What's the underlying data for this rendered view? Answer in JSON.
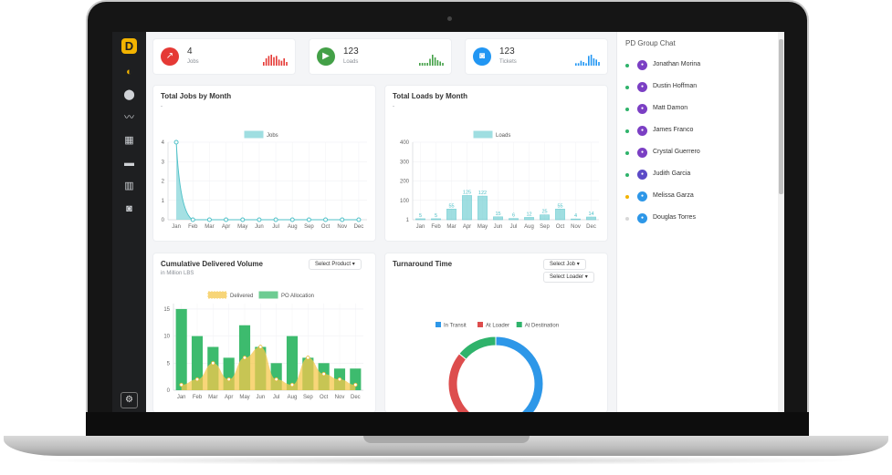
{
  "logo_letter": "D",
  "nav": [
    {
      "icon": "dashboard-icon",
      "glyph": "◐",
      "active": true
    },
    {
      "icon": "location-pin-icon",
      "glyph": "⬤",
      "active": false
    },
    {
      "icon": "trend-line-icon",
      "glyph": "〰",
      "active": false
    },
    {
      "icon": "grid-icon",
      "glyph": "▦",
      "active": false
    },
    {
      "icon": "truck-icon",
      "glyph": "▬",
      "active": false
    },
    {
      "icon": "building-icon",
      "glyph": "▥",
      "active": false
    },
    {
      "icon": "camera-icon",
      "glyph": "◙",
      "active": false
    }
  ],
  "stats": [
    {
      "value": "4",
      "label": "Jobs",
      "color": "#e53935",
      "icon": "trend-icon",
      "glyph": "↗",
      "spark": [
        3,
        6,
        8,
        9,
        7,
        8,
        5,
        4,
        6,
        3
      ]
    },
    {
      "value": "123",
      "label": "Loads",
      "color": "#43a047",
      "icon": "truck-icon",
      "glyph": "▶",
      "spark": [
        2,
        2,
        2,
        2,
        5,
        8,
        6,
        4,
        3,
        2
      ]
    },
    {
      "value": "123",
      "label": "Tickets",
      "color": "#2196f3",
      "icon": "camera-icon",
      "glyph": "◙",
      "spark": [
        2,
        2,
        4,
        3,
        2,
        8,
        9,
        6,
        5,
        3
      ]
    }
  ],
  "jobs_card": {
    "title": "Total Jobs by Month",
    "subtitle": "-"
  },
  "loads_card": {
    "title": "Total Loads by Month",
    "subtitle": "-"
  },
  "volume_card": {
    "title": "Cumulative Delivered Volume",
    "subtitle": "in Million LBS",
    "select_label": "Select Product"
  },
  "turnaround_card": {
    "title": "Turnaround Time",
    "select_job": "Select Job",
    "select_loader": "Select Loader"
  },
  "chart_data": [
    {
      "type": "area",
      "legend": [
        "Jobs"
      ],
      "categories": [
        "Jan",
        "Feb",
        "Mar",
        "Apr",
        "May",
        "Jun",
        "Jul",
        "Aug",
        "Sep",
        "Oct",
        "Nov",
        "Dec"
      ],
      "series": [
        {
          "name": "Jobs",
          "values": [
            4,
            0,
            0,
            0,
            0,
            0,
            0,
            0,
            0,
            0,
            0,
            0
          ]
        }
      ],
      "yticks": [
        0,
        1,
        2,
        3,
        4
      ],
      "ylim": [
        0,
        4
      ],
      "color": "#7fd3d7"
    },
    {
      "type": "bar",
      "legend": [
        "Loads"
      ],
      "categories": [
        "Jan",
        "Feb",
        "Mar",
        "Apr",
        "May",
        "Jun",
        "Jul",
        "Aug",
        "Sep",
        "Oct",
        "Nov",
        "Dec"
      ],
      "series": [
        {
          "name": "Loads",
          "values": [
            5,
            5,
            55,
            125,
            122,
            15,
            6,
            12,
            25,
            55,
            4,
            14
          ]
        }
      ],
      "yticks": [
        1,
        100,
        200,
        300,
        400
      ],
      "ylim": [
        0,
        400
      ],
      "color": "#7fd3d7"
    },
    {
      "type": "bar",
      "legend": [
        "Delivered",
        "PO Allocation"
      ],
      "categories": [
        "Jan",
        "Feb",
        "Mar",
        "Apr",
        "May",
        "Jun",
        "Jul",
        "Aug",
        "Sep",
        "Oct",
        "Nov",
        "Dec"
      ],
      "series": [
        {
          "name": "PO Allocation",
          "values": [
            15,
            10,
            8,
            6,
            12,
            8,
            5,
            10,
            6,
            5,
            4,
            4
          ]
        },
        {
          "name": "Delivered",
          "values": [
            1,
            2,
            5,
            2,
            6,
            8,
            2,
            1,
            6,
            3,
            2,
            1
          ]
        }
      ],
      "yticks": [
        0,
        5,
        10,
        15
      ],
      "ylim": [
        0,
        16
      ],
      "colors": {
        "PO Allocation": "#3dbb6e",
        "Delivered": "#f5c84c"
      }
    },
    {
      "type": "pie",
      "legend": [
        "In Transit",
        "At Loader",
        "At Destination"
      ],
      "values": [
        50,
        36,
        14
      ],
      "colors": [
        "#2d97e8",
        "#dd4d4d",
        "#2fb36b"
      ]
    }
  ],
  "chat": {
    "title": "PD Group Chat",
    "members": [
      {
        "name": "Jonathan Morina",
        "status": "#2fb36b",
        "avatar": "#7b3fc4"
      },
      {
        "name": "Dustin Hoffman",
        "status": "#2fb36b",
        "avatar": "#7b3fc4"
      },
      {
        "name": "Matt Damon",
        "status": "#2fb36b",
        "avatar": "#7b3fc4"
      },
      {
        "name": "James Franco",
        "status": "#2fb36b",
        "avatar": "#7b3fc4"
      },
      {
        "name": "Crystal Guerrero",
        "status": "#2fb36b",
        "avatar": "#7b3fc4"
      },
      {
        "name": "Judith Garcia",
        "status": "#2fb36b",
        "avatar": "#5c4ac7"
      },
      {
        "name": "Melissa Garza",
        "status": "#f2b300",
        "avatar": "#2d97e8"
      },
      {
        "name": "Douglas Torres",
        "status": "#d8d8d8",
        "avatar": "#2d97e8"
      }
    ]
  }
}
